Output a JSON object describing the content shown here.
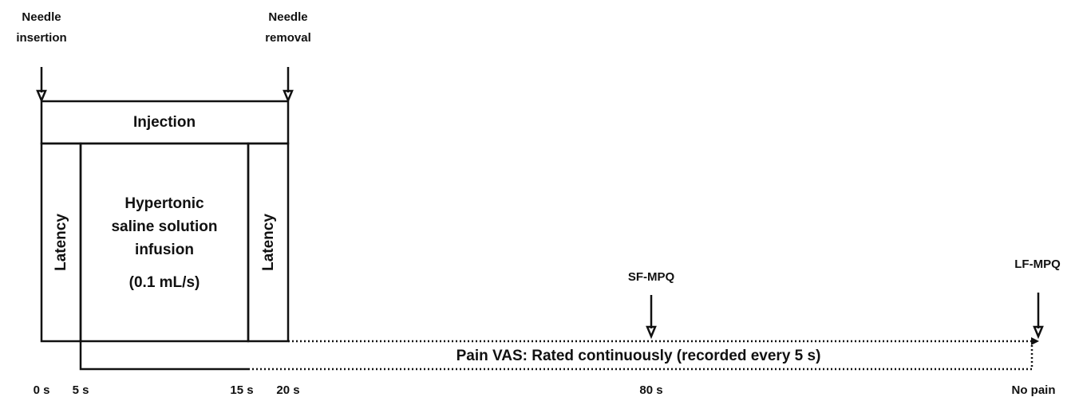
{
  "events": {
    "needle_insertion": [
      "Needle",
      "insertion"
    ],
    "needle_removal": [
      "Needle",
      "removal"
    ],
    "sf_mpq": "SF-MPQ",
    "lf_mpq": "LF-MPQ"
  },
  "phases": {
    "injection": "Injection",
    "latency_left": "Latency",
    "infusion": [
      "Hypertonic",
      "saline solution",
      "infusion"
    ],
    "infusion_rate": "(0.1 mL/s)",
    "latency_right": "Latency"
  },
  "pain_vas": "Pain VAS: Rated continuously (recorded every 5 s)",
  "timeline": [
    "0 s",
    "5 s",
    "15 s",
    "20 s",
    "80 s",
    "No pain"
  ]
}
